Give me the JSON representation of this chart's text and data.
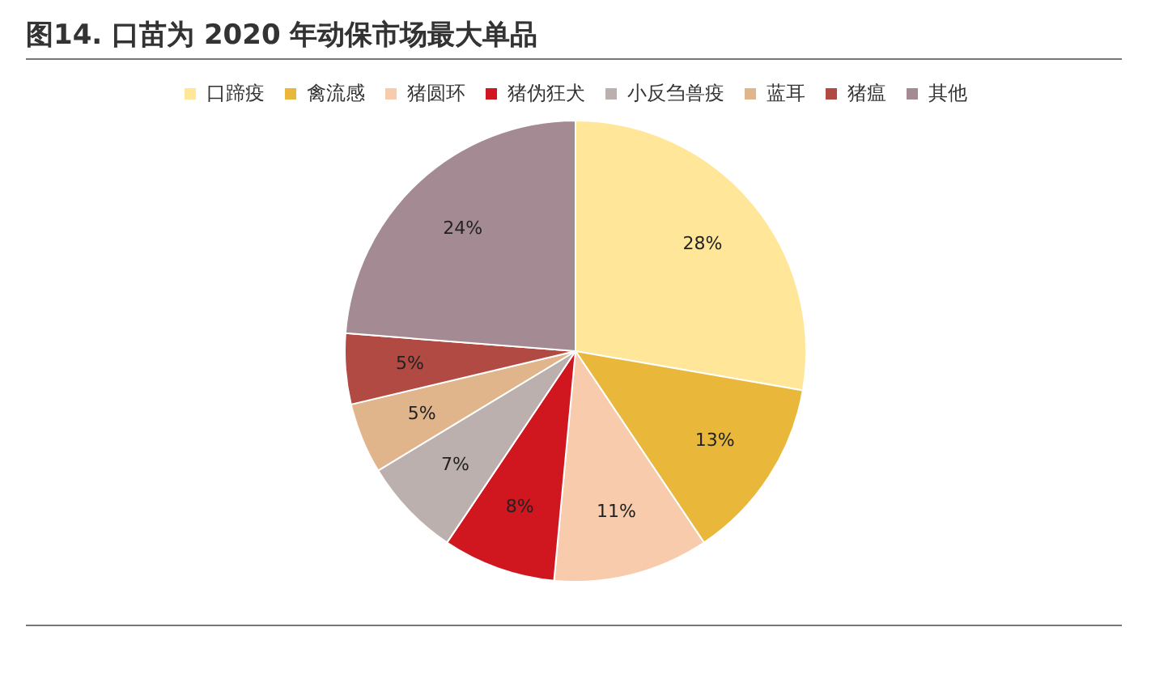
{
  "chart_data": {
    "type": "pie",
    "title": "图14. 口苗为 2020 年动保市场最大单品",
    "categories": [
      "口蹄疫",
      "禽流感",
      "猪圆环",
      "猪伪狂犬",
      "小反刍兽疫",
      "蓝耳",
      "猪瘟",
      "其他"
    ],
    "values": [
      28,
      13,
      11,
      8,
      7,
      5,
      5,
      24
    ],
    "colors": [
      "#ffe699",
      "#e9b83a",
      "#f8cbad",
      "#d0161f",
      "#bcb0ae",
      "#e0b58c",
      "#b04a42",
      "#a48a93"
    ],
    "value_labels": [
      "28%",
      "13%",
      "11%",
      "8%",
      "7%",
      "5%",
      "5%",
      "24%"
    ],
    "legend": "top"
  }
}
